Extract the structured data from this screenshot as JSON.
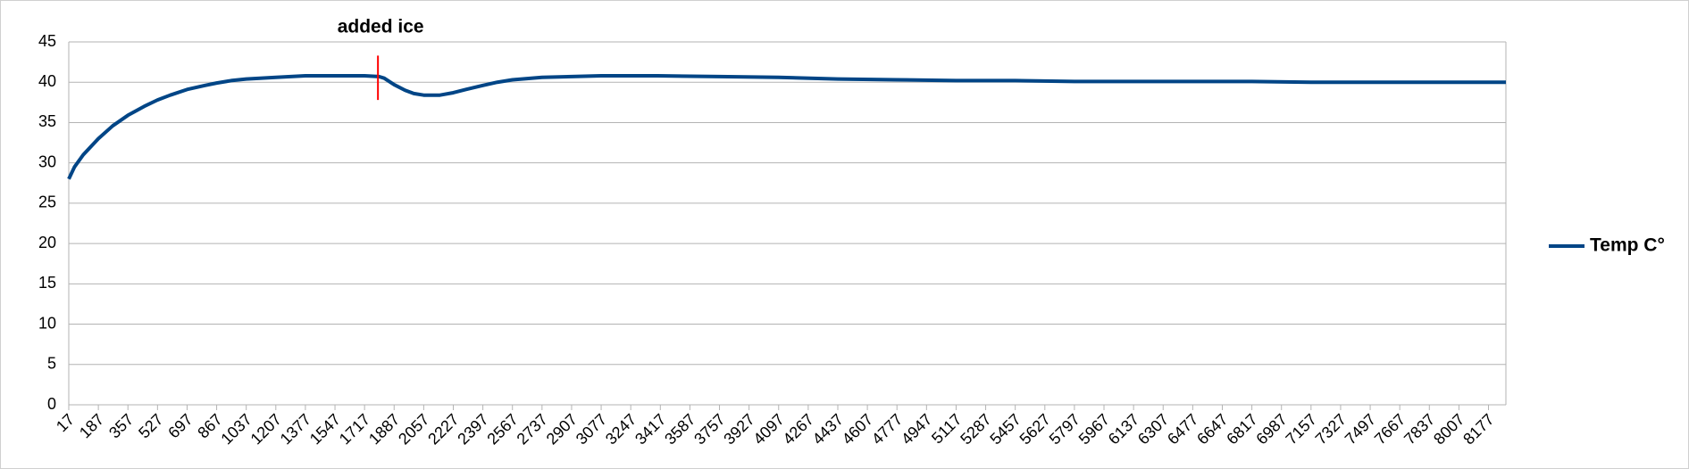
{
  "chart_data": {
    "type": "line",
    "xlim": [
      17,
      8277
    ],
    "xticks": [
      17,
      187,
      357,
      527,
      697,
      867,
      1037,
      1207,
      1377,
      1547,
      1717,
      1887,
      2057,
      2227,
      2397,
      2567,
      2737,
      2907,
      3077,
      3247,
      3417,
      3587,
      3757,
      3927,
      4097,
      4267,
      4437,
      4607,
      4777,
      4947,
      5117,
      5287,
      5457,
      5627,
      5797,
      5967,
      6137,
      6307,
      6477,
      6647,
      6817,
      6987,
      7157,
      7327,
      7497,
      7667,
      7837,
      8007,
      8177
    ],
    "ylim": [
      0,
      45
    ],
    "yticks": [
      0,
      5,
      10,
      15,
      20,
      25,
      30,
      35,
      40,
      45
    ],
    "grid": true,
    "legend": "right",
    "x": [
      17,
      50,
      100,
      187,
      270,
      357,
      450,
      527,
      600,
      697,
      800,
      867,
      950,
      1037,
      1207,
      1377,
      1547,
      1717,
      1800,
      1830,
      1887,
      1950,
      2000,
      2057,
      2150,
      2227,
      2300,
      2397,
      2480,
      2567,
      2737,
      2907,
      3077,
      3400,
      3757,
      4097,
      4437,
      4777,
      5117,
      5457,
      5797,
      6137,
      6477,
      6817,
      7157,
      7497,
      7837,
      8177,
      8277
    ],
    "series": [
      {
        "name": "Temp C°",
        "color": "#004586",
        "values": [
          28,
          29.5,
          31,
          33,
          34.6,
          35.9,
          37,
          37.8,
          38.4,
          39.1,
          39.6,
          39.9,
          40.2,
          40.4,
          40.6,
          40.8,
          40.8,
          40.8,
          40.7,
          40.5,
          39.7,
          39.0,
          38.6,
          38.4,
          38.4,
          38.7,
          39.1,
          39.6,
          40.0,
          40.3,
          40.6,
          40.7,
          40.8,
          40.8,
          40.7,
          40.6,
          40.4,
          40.3,
          40.2,
          40.2,
          40.1,
          40.1,
          40.1,
          40.1,
          40.0,
          40.0,
          40.0,
          40.0,
          40.0
        ]
      }
    ],
    "annotation": {
      "text": "added ice",
      "x": 1794,
      "color": "#ff0000",
      "ylim": [
        37.8,
        43.3
      ]
    }
  }
}
